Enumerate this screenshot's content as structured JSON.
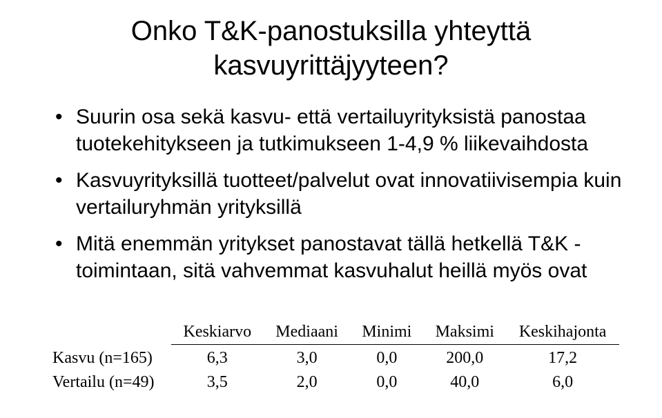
{
  "title_line1": "Onko T&K-panostuksilla yhteyttä",
  "title_line2": "kasvuyrittäjyyteen?",
  "bullets": {
    "b1": "Suurin osa sekä kasvu- että vertailuyrityksistä panostaa tuotekehitykseen ja tutkimukseen 1-4,9 % liikevaihdosta",
    "b2": "Kasvuyrityksillä tuotteet/palvelut ovat innovatiivisempia kuin vertailuryhmän yrityksillä",
    "b3": "Mitä enemmän yritykset panostavat tällä hetkellä T&K - toimintaan, sitä vahvemmat kasvuhalut heillä myös ovat"
  },
  "table": {
    "columns": {
      "c0": "",
      "c1": "Keskiarvo",
      "c2": "Mediaani",
      "c3": "Minimi",
      "c4": "Maksimi",
      "c5": "Keskihajonta"
    },
    "rows": {
      "r1": {
        "label": "Kasvu (n=165)",
        "v1": "6,3",
        "v2": "3,0",
        "v3": "0,0",
        "v4": "200,0",
        "v5": "17,2"
      },
      "r2": {
        "label": "Vertailu (n=49)",
        "v1": "3,5",
        "v2": "2,0",
        "v3": "0,0",
        "v4": "40,0",
        "v5": "6,0"
      }
    },
    "style": {
      "border_color": "#000000",
      "header_font": "Times New Roman",
      "body_font": "Times New Roman",
      "font_size_pt": 18,
      "col_align": [
        "left",
        "center",
        "center",
        "center",
        "center",
        "center"
      ]
    }
  },
  "colors": {
    "background": "#ffffff",
    "text": "#000000"
  },
  "typography": {
    "title_fontsize": 40,
    "bullet_fontsize": 30,
    "slide_font": "Arial"
  }
}
